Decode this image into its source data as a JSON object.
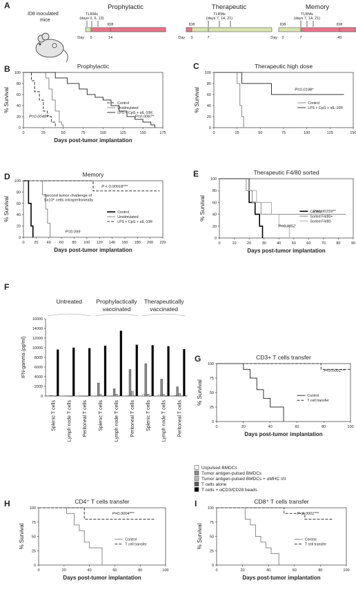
{
  "panelA": {
    "letter": "A",
    "mice_label": [
      "ID8 inoculated",
      "mice"
    ],
    "timelines": [
      {
        "title": "Prophylactic",
        "tlrm": [
          "TLRMs",
          "(days 0, 6, 13)"
        ],
        "id8": [
          "ID8"
        ],
        "day_word": "Day",
        "days": [
          "0",
          "14"
        ]
      },
      {
        "title": "Therapeutic",
        "tlrm": [
          "TLRMs",
          "(days 7, 14, 21)"
        ],
        "id8": [
          "ID8"
        ],
        "day_word": "Day",
        "days": [
          "0",
          "7"
        ]
      },
      {
        "title": "Memory",
        "tlrm": [
          "TLRMs",
          "(days 7, 14, 21)"
        ],
        "id8": [
          "ID8",
          "ID8"
        ],
        "day_word": "Day",
        "days": [
          "0",
          "7",
          "49"
        ]
      }
    ],
    "colors": {
      "green": "#d9e3b0",
      "pink": "#e8738a"
    }
  },
  "chart_data": [
    {
      "panel": "B",
      "type": "line",
      "title": "Prophylactic",
      "xlabel": "Days post-tumor implantation",
      "ylabel": "% Survival",
      "xlim": [
        0,
        175
      ],
      "ylim": [
        0,
        100
      ],
      "xticks": [
        "0",
        "25",
        "50",
        "75",
        "100",
        "125",
        "150",
        "175"
      ],
      "yticks": [
        "0",
        "20",
        "40",
        "60",
        "80",
        "100"
      ],
      "series": [
        {
          "name": "Control",
          "style": "dashed",
          "x": [
            0,
            10,
            14,
            20,
            25,
            30,
            35,
            40
          ],
          "y": [
            100,
            85,
            65,
            50,
            30,
            20,
            10,
            0
          ]
        },
        {
          "name": "Unstimulated",
          "style": "gray",
          "x": [
            0,
            28,
            32,
            36,
            40,
            45,
            48,
            50
          ],
          "y": [
            100,
            90,
            70,
            50,
            30,
            10,
            5,
            0
          ]
        },
        {
          "name": "LPS + CpG + αIL-10R",
          "style": "solid",
          "x": [
            0,
            40,
            55,
            70,
            80,
            90,
            100,
            110,
            120,
            130,
            140,
            150,
            160,
            165
          ],
          "y": [
            100,
            90,
            80,
            70,
            60,
            55,
            50,
            40,
            30,
            20,
            15,
            10,
            5,
            0
          ]
        }
      ],
      "annotations": [
        "P=0.0048**",
        "P=0.0087*"
      ]
    },
    {
      "panel": "C",
      "type": "line",
      "title": "Therapeutic high dose",
      "xlabel": "",
      "ylabel": "% Survival",
      "xlim": [
        0,
        150
      ],
      "ylim": [
        0,
        100
      ],
      "xticks": [
        "0",
        "25",
        "50",
        "75",
        "100",
        "125",
        "150"
      ],
      "yticks": [
        "0",
        "20",
        "40",
        "60",
        "80",
        "100"
      ],
      "series": [
        {
          "name": "Control",
          "style": "gray",
          "x": [
            0,
            25,
            28,
            30,
            32
          ],
          "y": [
            100,
            80,
            40,
            20,
            0
          ]
        },
        {
          "name": "LPS + CpG + αIL-10R",
          "style": "solid",
          "x": [
            0,
            30,
            62,
            140
          ],
          "y": [
            100,
            80,
            60,
            60
          ]
        }
      ],
      "annotations": [
        "P=0.0198*"
      ]
    },
    {
      "panel": "D",
      "type": "line",
      "title": "Memory",
      "xlabel": "Days post-tumor implantation",
      "ylabel": "% Survival",
      "xlim": [
        0,
        220
      ],
      "ylim": [
        0,
        100
      ],
      "xticks": [
        "0",
        "20",
        "40",
        "60",
        "80",
        "100",
        "120",
        "140",
        "160",
        "180",
        "200",
        "220"
      ],
      "yticks": [
        "0",
        "20",
        "40",
        "60",
        "80",
        "100"
      ],
      "series": [
        {
          "name": "Control",
          "style": "solid-bold",
          "x": [
            0,
            8,
            12,
            15
          ],
          "y": [
            100,
            60,
            20,
            0
          ]
        },
        {
          "name": "Unstimulated",
          "style": "gray",
          "x": [
            0,
            30,
            35,
            38,
            42
          ],
          "y": [
            100,
            75,
            50,
            25,
            0
          ]
        },
        {
          "name": "LPS + CpG + αIL-10R",
          "style": "dashed",
          "x": [
            0,
            50,
            110,
            215
          ],
          "y": [
            100,
            100,
            82,
            82
          ]
        }
      ],
      "annotations": [
        "P < 0.00018***",
        "P=0.099",
        "Second tumor challenge of",
        "5x10⁶ cells intraperitoneally"
      ]
    },
    {
      "panel": "E",
      "type": "line",
      "title": "Therapeutic F4/80 sorted",
      "xlabel": "Days post-tumor implantation",
      "ylabel": "% Survival",
      "xlim": [
        0,
        90
      ],
      "ylim": [
        0,
        100
      ],
      "xticks": [
        "0",
        "10",
        "20",
        "30",
        "40",
        "50",
        "60",
        "70",
        "80",
        "90"
      ],
      "yticks": [
        "0",
        "20",
        "40",
        "60",
        "80",
        "100"
      ],
      "series": [
        {
          "name": "Control",
          "style": "solid-bold",
          "x": [
            0,
            20,
            24,
            27,
            29
          ],
          "y": [
            100,
            60,
            40,
            20,
            0
          ]
        },
        {
          "name": "Sorted F4/80+",
          "style": "gray",
          "x": [
            0,
            18,
            22,
            28,
            33,
            85
          ],
          "y": [
            100,
            80,
            60,
            40,
            40,
            40
          ]
        },
        {
          "name": "Sorted F4/80-",
          "style": "light",
          "x": [
            0,
            20,
            25,
            30,
            35,
            40,
            45,
            47
          ],
          "y": [
            100,
            80,
            60,
            60,
            40,
            20,
            20,
            0
          ]
        }
      ],
      "annotations": [
        "P=0.00159**",
        "P=0.0952"
      ]
    },
    {
      "panel": "F",
      "type": "bar",
      "xlabel": "",
      "ylabel": "IFN-gamma (pg/ml)",
      "ylim": [
        0,
        16000
      ],
      "yticks": [
        "0",
        "2000",
        "4000",
        "6000",
        "8000",
        "10000",
        "12000",
        "14000",
        "16000"
      ],
      "group_titles": [
        "Untreated",
        [
          "Prophylactically",
          "vaccinated"
        ],
        [
          "Therapeutically",
          "vaccinated"
        ]
      ],
      "categories": [
        "Splenic T cells",
        "Lymph node T cells",
        "Peritoneal T cells",
        "Splenic T cells",
        "Lymph node T cells",
        "Peritoneal T cells",
        "Splenic T cells",
        "Lymph node T cells",
        "Peritoneal T cells"
      ],
      "series": [
        {
          "name": "Unpulsed BMDCs",
          "color": "#ffffff",
          "values": [
            50,
            30,
            20,
            30,
            40,
            150,
            300,
            200,
            100
          ]
        },
        {
          "name": "Tumor antigen-pulsed BMDCs",
          "color": "#8a8a8a",
          "values": [
            80,
            40,
            30,
            2700,
            1500,
            5500,
            6700,
            3500,
            1900
          ]
        },
        {
          "name": "Tumor antigen-pulsed BMDCs + αMHC I/II",
          "color": "#b9b9b9",
          "values": [
            30,
            20,
            10,
            300,
            400,
            1000,
            400,
            300,
            500
          ]
        },
        {
          "name": "T cells alone",
          "color": "#5a5a5a",
          "values": [
            20,
            10,
            10,
            20,
            20,
            30,
            20,
            20,
            20
          ]
        },
        {
          "name": "T cells + αCD3/CD28 beads",
          "color": "#000000",
          "values": [
            9600,
            10000,
            9900,
            10400,
            13500,
            10600,
            10500,
            10300,
            9700
          ]
        }
      ]
    },
    {
      "panel": "G",
      "type": "line",
      "title": "CD3+ T cells transfer",
      "xlabel": "Days post-tumor implantation",
      "ylabel": "% Survival",
      "xlim": [
        0,
        100
      ],
      "ylim": [
        0,
        100
      ],
      "xticks": [
        "0",
        "20",
        "40",
        "60",
        "80",
        "100"
      ],
      "yticks": [
        "0",
        "25",
        "50",
        "75",
        "100"
      ],
      "series": [
        {
          "name": "Control",
          "style": "solid",
          "x": [
            0,
            20,
            25,
            30,
            35,
            40,
            45,
            50
          ],
          "y": [
            100,
            90,
            75,
            55,
            40,
            25,
            25,
            0
          ]
        },
        {
          "name": "T cell transfer",
          "style": "dashed",
          "x": [
            0,
            70,
            78,
            100
          ],
          "y": [
            100,
            100,
            90,
            90
          ]
        }
      ],
      "annotations": [
        "P<0.0001***"
      ]
    },
    {
      "panel": "H",
      "type": "line",
      "title": "CD4⁺ T cells transfer",
      "xlabel": "Days post-tumor implantation",
      "ylabel": "% Survival",
      "xlim": [
        0,
        100
      ],
      "ylim": [
        0,
        100
      ],
      "xticks": [
        "0",
        "20",
        "40",
        "60",
        "80",
        "100"
      ],
      "yticks": [
        "0",
        "25",
        "50",
        "75",
        "100"
      ],
      "series": [
        {
          "name": "Control",
          "style": "gray",
          "x": [
            0,
            22,
            28,
            32,
            36,
            40,
            50
          ],
          "y": [
            100,
            90,
            70,
            60,
            40,
            30,
            0
          ]
        },
        {
          "name": "T cell transfer",
          "style": "dashed",
          "x": [
            0,
            30,
            36,
            92
          ],
          "y": [
            100,
            100,
            80,
            80
          ]
        }
      ],
      "annotations": [
        "P=0.0004***"
      ]
    },
    {
      "panel": "I",
      "type": "line",
      "title": "CD8⁺ T cells transfer",
      "xlabel": "Days post-tumor implantation",
      "ylabel": "% Survival",
      "xlim": [
        0,
        100
      ],
      "ylim": [
        0,
        100
      ],
      "xticks": [
        "0",
        "20",
        "40",
        "60",
        "80",
        "100"
      ],
      "yticks": [
        "0",
        "25",
        "50",
        "75",
        "100"
      ],
      "series": [
        {
          "name": "Control",
          "style": "gray",
          "x": [
            0,
            22,
            26,
            30,
            34,
            38,
            42,
            48
          ],
          "y": [
            100,
            80,
            70,
            50,
            40,
            30,
            20,
            0
          ]
        },
        {
          "name": "T cell transfer",
          "style": "dashed",
          "x": [
            0,
            40,
            52,
            68,
            90
          ],
          "y": [
            100,
            100,
            90,
            80,
            80
          ]
        }
      ],
      "annotations": [
        "P<0.0001***"
      ]
    }
  ]
}
